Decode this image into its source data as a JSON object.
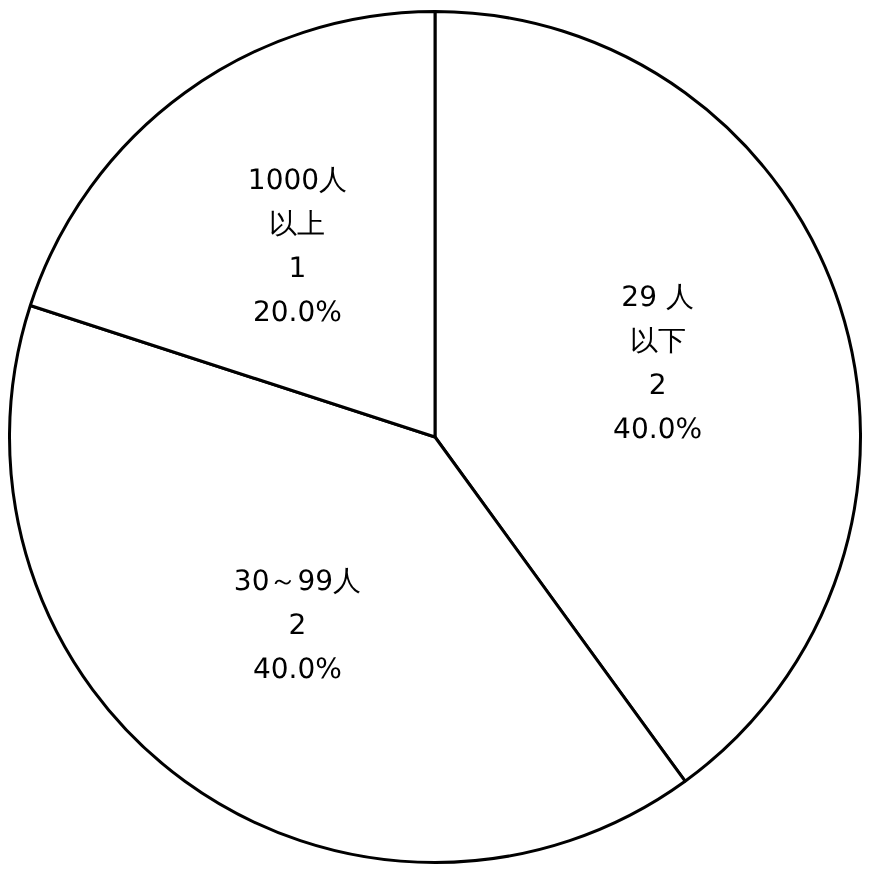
{
  "chart_data": {
    "type": "pie",
    "categories": [
      "29 人以下",
      "30～99人",
      "1000人以上"
    ],
    "values": [
      2,
      2,
      1
    ],
    "colors": [
      "#ffffff",
      "#ffffff",
      "#ffffff"
    ],
    "value_labels": [
      "2\n40.0%",
      "2\n40.0%",
      "1\n20.0%"
    ],
    "legend": false
  }
}
